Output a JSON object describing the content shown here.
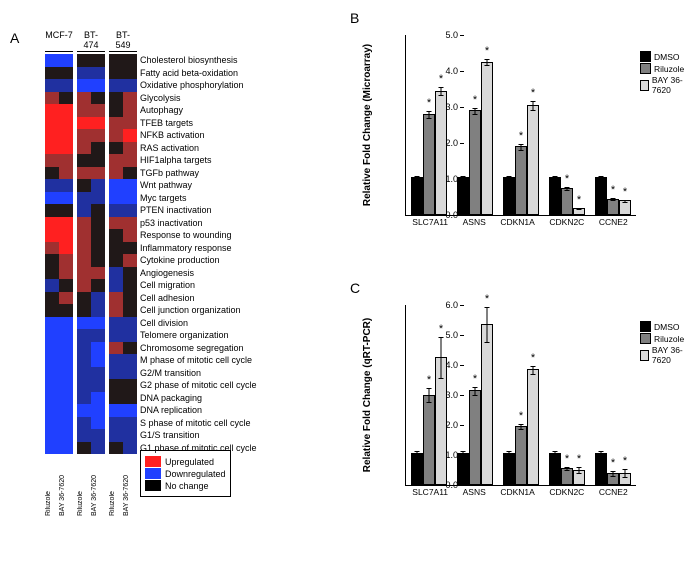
{
  "panelA": {
    "label": "A",
    "cell_lines": [
      "MCF-7",
      "BT-474",
      "BT-549"
    ],
    "treatments": [
      "Riluzole",
      "BAY 36-7620"
    ],
    "pathways": [
      "Cholesterol biosynthesis",
      "Fatty acid beta-oxidation",
      "Oxidative phosphorylation",
      "Glycolysis",
      "Autophagy",
      "TFEB targets",
      "NFKB activation",
      "RAS activation",
      "HIF1alpha targets",
      "TGFb pathway",
      "Wnt pathway",
      "Myc targets",
      "PTEN inactivation",
      "p53 inactivation",
      "Response to wounding",
      "Inflammatory response",
      "Cytokine production",
      "Angiogenesis",
      "Cell migration",
      "Cell adhesion",
      "Cell junction organization",
      "Cell division",
      "Telomere organization",
      "Chromosome segregation",
      "M phase of mitotic cell cycle",
      "G2/M transition",
      "G2 phase of mitotic cell cycle",
      "DNA packaging",
      "DNA replication",
      "S phase of mitotic cell cycle",
      "G1/S transition",
      "G1 phase of mitotic cell cycle"
    ],
    "colors": {
      "up2": "#ff2020",
      "up1": "#a03030",
      "mid": "#201818",
      "dn1": "#2030a0",
      "dn2": "#2040ff"
    },
    "matrix": [
      [
        [
          "dn2",
          "dn2"
        ],
        [
          "mid",
          "mid"
        ],
        [
          "mid",
          "mid"
        ]
      ],
      [
        [
          "mid",
          "mid"
        ],
        [
          "dn1",
          "dn1"
        ],
        [
          "mid",
          "mid"
        ]
      ],
      [
        [
          "dn1",
          "dn1"
        ],
        [
          "dn2",
          "dn2"
        ],
        [
          "dn1",
          "dn1"
        ]
      ],
      [
        [
          "up1",
          "mid"
        ],
        [
          "up1",
          "mid"
        ],
        [
          "mid",
          "up1"
        ]
      ],
      [
        [
          "up2",
          "up2"
        ],
        [
          "up1",
          "up1"
        ],
        [
          "mid",
          "up1"
        ]
      ],
      [
        [
          "up2",
          "up2"
        ],
        [
          "up2",
          "up2"
        ],
        [
          "up1",
          "up1"
        ]
      ],
      [
        [
          "up2",
          "up2"
        ],
        [
          "up1",
          "up1"
        ],
        [
          "up1",
          "up2"
        ]
      ],
      [
        [
          "up2",
          "up2"
        ],
        [
          "up1",
          "mid"
        ],
        [
          "mid",
          "up1"
        ]
      ],
      [
        [
          "up1",
          "up1"
        ],
        [
          "mid",
          "mid"
        ],
        [
          "up1",
          "up1"
        ]
      ],
      [
        [
          "mid",
          "up1"
        ],
        [
          "up1",
          "up1"
        ],
        [
          "up1",
          "mid"
        ]
      ],
      [
        [
          "dn1",
          "dn1"
        ],
        [
          "mid",
          "dn1"
        ],
        [
          "dn2",
          "dn2"
        ]
      ],
      [
        [
          "dn2",
          "dn2"
        ],
        [
          "dn1",
          "dn1"
        ],
        [
          "dn2",
          "dn2"
        ]
      ],
      [
        [
          "mid",
          "mid"
        ],
        [
          "dn1",
          "mid"
        ],
        [
          "dn1",
          "dn1"
        ]
      ],
      [
        [
          "up2",
          "up2"
        ],
        [
          "up1",
          "mid"
        ],
        [
          "up1",
          "up1"
        ]
      ],
      [
        [
          "up2",
          "up2"
        ],
        [
          "up1",
          "mid"
        ],
        [
          "mid",
          "up1"
        ]
      ],
      [
        [
          "up1",
          "up2"
        ],
        [
          "up1",
          "mid"
        ],
        [
          "mid",
          "mid"
        ]
      ],
      [
        [
          "mid",
          "up1"
        ],
        [
          "up1",
          "mid"
        ],
        [
          "mid",
          "up1"
        ]
      ],
      [
        [
          "mid",
          "up1"
        ],
        [
          "up1",
          "up1"
        ],
        [
          "dn1",
          "mid"
        ]
      ],
      [
        [
          "dn1",
          "mid"
        ],
        [
          "up1",
          "mid"
        ],
        [
          "dn1",
          "mid"
        ]
      ],
      [
        [
          "mid",
          "up1"
        ],
        [
          "mid",
          "dn1"
        ],
        [
          "up1",
          "mid"
        ]
      ],
      [
        [
          "mid",
          "mid"
        ],
        [
          "mid",
          "dn1"
        ],
        [
          "up1",
          "mid"
        ]
      ],
      [
        [
          "dn2",
          "dn2"
        ],
        [
          "dn2",
          "dn2"
        ],
        [
          "dn1",
          "dn1"
        ]
      ],
      [
        [
          "dn2",
          "dn2"
        ],
        [
          "dn1",
          "dn1"
        ],
        [
          "dn1",
          "dn1"
        ]
      ],
      [
        [
          "dn2",
          "dn2"
        ],
        [
          "dn1",
          "dn2"
        ],
        [
          "up1",
          "mid"
        ]
      ],
      [
        [
          "dn2",
          "dn2"
        ],
        [
          "dn1",
          "dn2"
        ],
        [
          "dn1",
          "dn1"
        ]
      ],
      [
        [
          "dn2",
          "dn2"
        ],
        [
          "dn1",
          "dn1"
        ],
        [
          "dn1",
          "dn1"
        ]
      ],
      [
        [
          "dn2",
          "dn2"
        ],
        [
          "dn1",
          "dn1"
        ],
        [
          "mid",
          "mid"
        ]
      ],
      [
        [
          "dn2",
          "dn2"
        ],
        [
          "dn1",
          "dn2"
        ],
        [
          "mid",
          "mid"
        ]
      ],
      [
        [
          "dn2",
          "dn2"
        ],
        [
          "dn2",
          "dn2"
        ],
        [
          "dn2",
          "dn2"
        ]
      ],
      [
        [
          "dn2",
          "dn2"
        ],
        [
          "dn1",
          "dn2"
        ],
        [
          "dn1",
          "dn1"
        ]
      ],
      [
        [
          "dn2",
          "dn2"
        ],
        [
          "dn1",
          "dn1"
        ],
        [
          "dn1",
          "dn1"
        ]
      ],
      [
        [
          "dn2",
          "dn2"
        ],
        [
          "mid",
          "dn1"
        ],
        [
          "mid",
          "dn1"
        ]
      ]
    ],
    "legend": [
      {
        "color": "#ff2020",
        "label": "Upregulated"
      },
      {
        "color": "#2040ff",
        "label": "Downregulated"
      },
      {
        "color": "#000000",
        "label": "No change"
      }
    ]
  },
  "panelB": {
    "label": "B",
    "ylabel": "Relative Fold Change (Microarray)",
    "ylim": [
      0,
      5
    ],
    "ytick_step": 1,
    "genes": [
      "SLC7A11",
      "ASNS",
      "CDKN1A",
      "CDKN2C",
      "CCNE2"
    ],
    "series": [
      {
        "name": "DMSO",
        "color": "#000000"
      },
      {
        "name": "Riluzole",
        "color": "#808080"
      },
      {
        "name": "BAY 36-7620",
        "color": "#d9d9d9"
      }
    ],
    "values": [
      [
        1.0,
        2.75,
        3.4
      ],
      [
        1.0,
        2.85,
        4.2
      ],
      [
        1.0,
        1.85,
        3.0
      ],
      [
        1.0,
        0.7,
        0.15
      ],
      [
        1.0,
        0.4,
        0.35
      ]
    ],
    "errors": [
      [
        0.05,
        0.1,
        0.12
      ],
      [
        0.05,
        0.1,
        0.1
      ],
      [
        0.05,
        0.1,
        0.15
      ],
      [
        0.05,
        0.05,
        0.03
      ],
      [
        0.05,
        0.05,
        0.05
      ]
    ],
    "stars": [
      [
        false,
        true,
        true
      ],
      [
        false,
        true,
        true
      ],
      [
        false,
        true,
        true
      ],
      [
        false,
        true,
        true
      ],
      [
        false,
        true,
        true
      ]
    ]
  },
  "panelC": {
    "label": "C",
    "ylabel": "Relative Fold Change (qRT-PCR)",
    "ylim": [
      0,
      6
    ],
    "ytick_step": 1,
    "genes": [
      "SLC7A11",
      "ASNS",
      "CDKN1A",
      "CDKN2C",
      "CCNE2"
    ],
    "series": [
      {
        "name": "DMSO",
        "color": "#000000"
      },
      {
        "name": "Riluzole",
        "color": "#808080"
      },
      {
        "name": "BAY 36-7620",
        "color": "#d9d9d9"
      }
    ],
    "values": [
      [
        1.0,
        2.95,
        4.2
      ],
      [
        1.0,
        3.1,
        5.3
      ],
      [
        1.0,
        1.9,
        3.8
      ],
      [
        1.0,
        0.5,
        0.45
      ],
      [
        1.0,
        0.35,
        0.35
      ]
    ],
    "errors": [
      [
        0.1,
        0.25,
        0.7
      ],
      [
        0.1,
        0.15,
        0.6
      ],
      [
        0.1,
        0.1,
        0.15
      ],
      [
        0.1,
        0.08,
        0.12
      ],
      [
        0.1,
        0.1,
        0.15
      ]
    ],
    "stars": [
      [
        false,
        true,
        true
      ],
      [
        false,
        true,
        true
      ],
      [
        false,
        true,
        true
      ],
      [
        false,
        true,
        true
      ],
      [
        false,
        true,
        true
      ]
    ]
  }
}
